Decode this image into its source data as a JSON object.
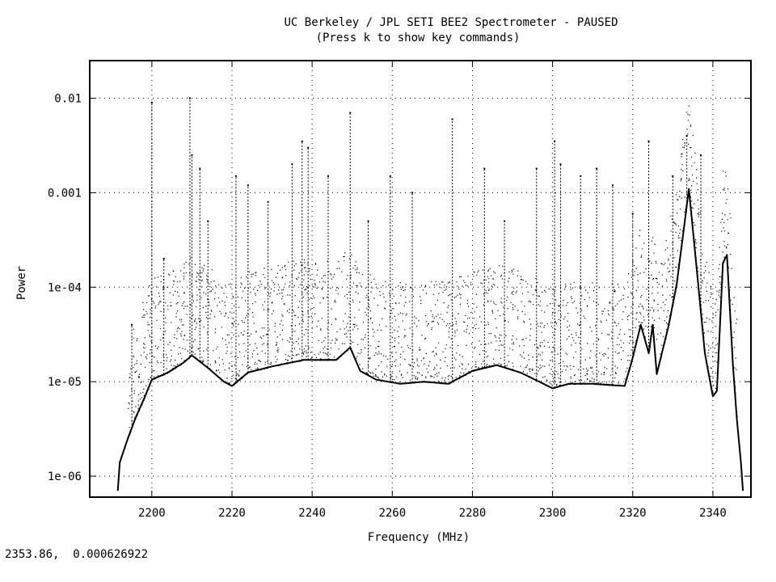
{
  "window": {
    "title_line1": "UC Berkeley / JPL  SETI BEE2 Spectrometer - PAUSED",
    "title_line2": "(Press k to show key commands)",
    "status": {
      "cursor_readout": "2353.86,  0.000626922"
    }
  },
  "chart_data": {
    "type": "scatter",
    "title": "UC Berkeley / JPL  SETI BEE2 Spectrometer - PAUSED",
    "subtitle": "(Press k to show key commands)",
    "xlabel": "Frequency (MHz)",
    "ylabel": "Power",
    "x_scale": "linear",
    "y_scale": "log",
    "xlim": [
      2184.5,
      2349.5
    ],
    "ylim": [
      6e-07,
      0.025
    ],
    "grid": true,
    "x_ticks": [
      2200,
      2220,
      2240,
      2260,
      2280,
      2300,
      2320,
      2340
    ],
    "x_tick_labels": [
      "2200",
      "2220",
      "2240",
      "2260",
      "2280",
      "2300",
      "2320",
      "2340"
    ],
    "y_ticks": [
      1e-06,
      1e-05,
      0.0001,
      0.001,
      0.01
    ],
    "y_tick_labels": [
      "1e-06",
      "1e-05",
      "1e-04",
      "0.001",
      "0.01"
    ],
    "baseline": {
      "x": [
        2191.5,
        2192,
        2194,
        2196,
        2198,
        2200,
        2204,
        2208,
        2210,
        2214,
        2218,
        2220,
        2224,
        2230,
        2238,
        2246,
        2249.5,
        2252,
        2256,
        2262,
        2268,
        2274,
        2280,
        2286,
        2292,
        2300,
        2304,
        2310,
        2318,
        2320,
        2322,
        2324,
        2325,
        2326,
        2327,
        2329,
        2331,
        2333,
        2334,
        2336,
        2338,
        2340,
        2341,
        2342.5,
        2343.5,
        2345,
        2346,
        2347,
        2347.5
      ],
      "y": [
        7e-07,
        1.4e-06,
        2.5e-06,
        4.2e-06,
        6.5e-06,
        1.05e-05,
        1.25e-05,
        1.6e-05,
        1.9e-05,
        1.4e-05,
        1e-05,
        9e-06,
        1.25e-05,
        1.45e-05,
        1.7e-05,
        1.7e-05,
        2.3e-05,
        1.3e-05,
        1.05e-05,
        9.5e-06,
        1e-05,
        9.5e-06,
        1.3e-05,
        1.5e-05,
        1.25e-05,
        8.5e-06,
        9.5e-06,
        9.5e-06,
        9e-06,
        1.8e-05,
        4e-05,
        2e-05,
        4e-05,
        1.2e-05,
        1.8e-05,
        4e-05,
        0.00011,
        0.0005,
        0.0011,
        0.00015,
        2e-05,
        7e-06,
        8e-06,
        0.00018,
        0.00022,
        1.5e-05,
        4e-06,
        1.4e-06,
        7e-07
      ]
    },
    "spikes": {
      "x": [
        2195,
        2200,
        2203,
        2209.5,
        2210,
        2212,
        2214,
        2221,
        2224,
        2229,
        2235,
        2237.5,
        2239,
        2244,
        2249.5,
        2254,
        2259.5,
        2265,
        2275,
        2283,
        2288,
        2296,
        2300.5,
        2302,
        2307,
        2311,
        2315,
        2320,
        2324,
        2330,
        2333.5,
        2337
      ],
      "y": [
        4e-05,
        0.009,
        0.0002,
        0.01,
        0.0025,
        0.0018,
        0.0005,
        0.0015,
        0.0012,
        0.0008,
        0.002,
        0.0035,
        0.003,
        0.0015,
        0.007,
        0.0005,
        0.0015,
        0.001,
        0.006,
        0.0018,
        0.0005,
        0.0018,
        0.0035,
        0.002,
        0.0015,
        0.0018,
        0.0012,
        0.0006,
        0.0035,
        0.0015,
        0.004,
        0.0025
      ]
    },
    "noise_band": {
      "x_range": [
        2194,
        2346
      ],
      "factor_range": [
        1.0,
        12.0
      ]
    }
  }
}
